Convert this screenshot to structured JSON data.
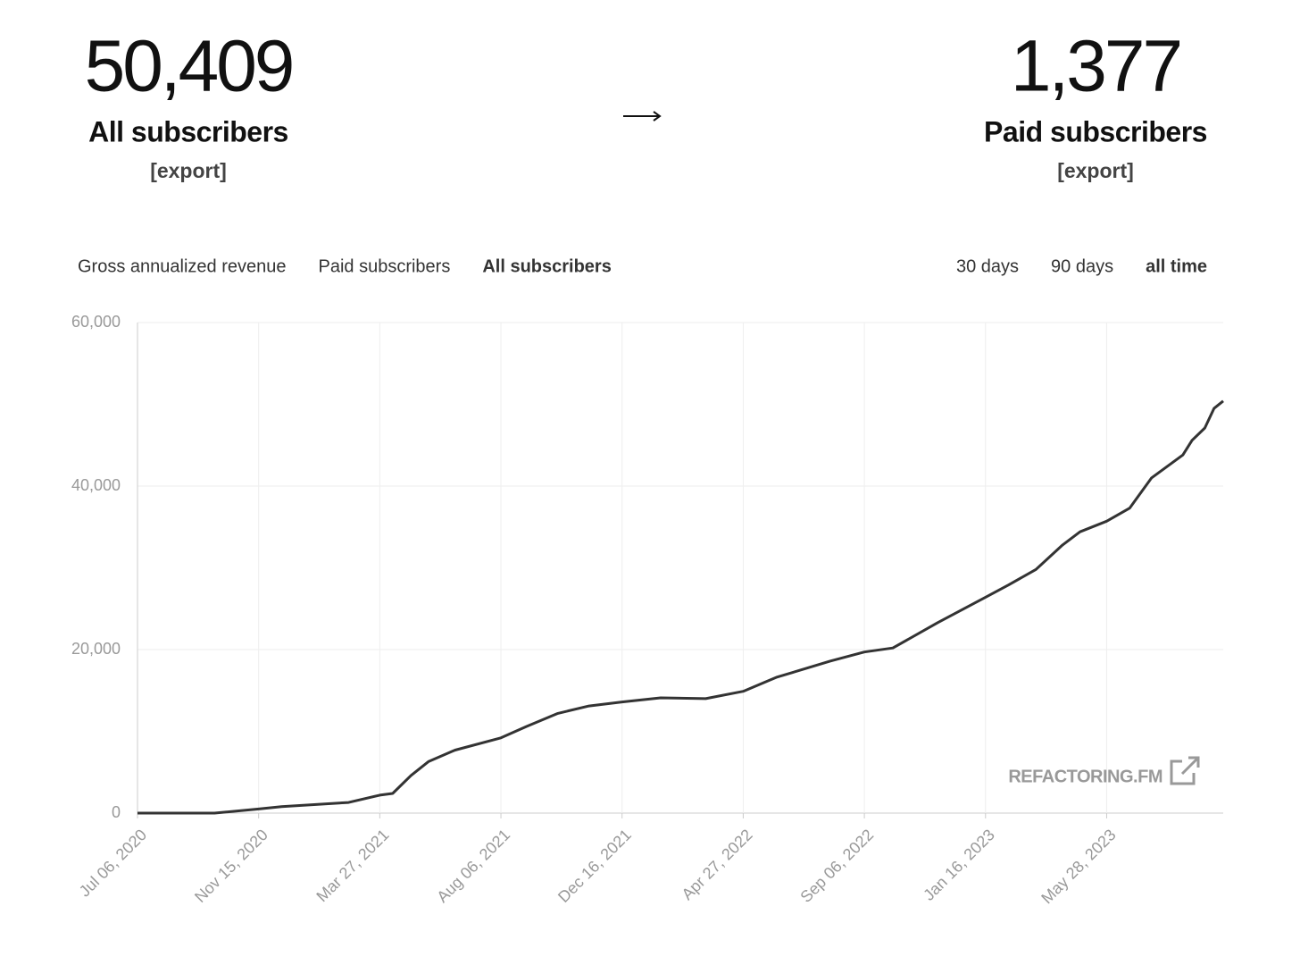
{
  "stats": [
    {
      "value": "50,409",
      "label": "All subscribers",
      "action": "[export]"
    },
    {
      "value": "1,377",
      "label": "Paid subscribers",
      "action": "[export]"
    }
  ],
  "tabs": [
    "Gross annualized revenue",
    "Paid subscribers",
    "All subscribers"
  ],
  "active_tab": 2,
  "ranges": [
    "30 days",
    "90 days",
    "all time"
  ],
  "active_range": 2,
  "chart_data": {
    "type": "line",
    "watermark": "REFACTORING.FM",
    "color": "#333333",
    "grid": true,
    "x": [
      "2020-07-06",
      "2020-09-28",
      "2020-11-15",
      "2020-12-10",
      "2021-02-21",
      "2021-03-27",
      "2021-04-10",
      "2021-04-30",
      "2021-05-19",
      "2021-06-17",
      "2021-08-06",
      "2021-09-03",
      "2021-10-07",
      "2021-11-10",
      "2021-12-16",
      "2022-01-27",
      "2022-03-17",
      "2022-04-27",
      "2022-06-02",
      "2022-07-31",
      "2022-09-06",
      "2022-10-07",
      "2022-11-25",
      "2023-01-16",
      "2023-02-10",
      "2023-03-12",
      "2023-04-10",
      "2023-04-29",
      "2023-05-28",
      "2023-06-22",
      "2023-07-16",
      "2023-08-19",
      "2023-08-29",
      "2023-09-12",
      "2023-09-22",
      "2023-10-02"
    ],
    "values": [
      0,
      0,
      500,
      800,
      1300,
      2200,
      2400,
      4600,
      6300,
      7700,
      9200,
      10600,
      12200,
      13100,
      13600,
      14100,
      14000,
      14900,
      16600,
      18600,
      19700,
      20200,
      23300,
      26400,
      27900,
      29800,
      32800,
      34400,
      35700,
      37300,
      41000,
      43800,
      45600,
      47100,
      49500,
      50409
    ],
    "xlim": [
      "2020-07-06",
      "2023-10-02"
    ],
    "xticks": [
      {
        "value": "2020-07-06",
        "label": "Jul 06, 2020"
      },
      {
        "value": "2020-11-15",
        "label": "Nov 15, 2020"
      },
      {
        "value": "2021-03-27",
        "label": "Mar 27, 2021"
      },
      {
        "value": "2021-08-06",
        "label": "Aug 06, 2021"
      },
      {
        "value": "2021-12-16",
        "label": "Dec 16, 2021"
      },
      {
        "value": "2022-04-27",
        "label": "Apr 27, 2022"
      },
      {
        "value": "2022-09-06",
        "label": "Sep 06, 2022"
      },
      {
        "value": "2023-01-16",
        "label": "Jan 16, 2023"
      },
      {
        "value": "2023-05-28",
        "label": "May 28, 2023"
      }
    ],
    "ylim": [
      0,
      60000
    ],
    "yticks": [
      0,
      {
        "value": 20000,
        "label": "20,000"
      },
      {
        "value": 40000,
        "label": "40,000"
      },
      {
        "value": 60000,
        "label": "60,000"
      }
    ]
  }
}
